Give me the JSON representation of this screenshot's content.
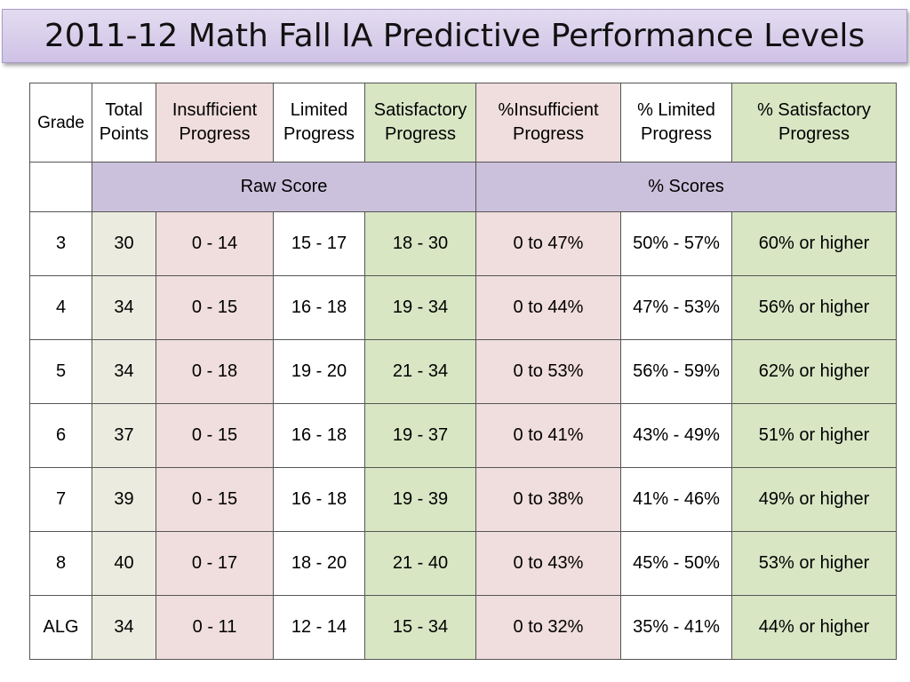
{
  "title": "2011-12 Math Fall IA Predictive Performance Levels",
  "headers": {
    "grade": "Grade",
    "total_points": [
      "Total",
      "Points"
    ],
    "insufficient": [
      "Insufficient",
      "Progress"
    ],
    "limited": [
      "Limited",
      "Progress"
    ],
    "satisfactory": [
      "Satisfactory",
      "Progress"
    ],
    "pct_insufficient": [
      "%Insufficient",
      "Progress"
    ],
    "pct_limited": [
      "% Limited",
      "Progress"
    ],
    "pct_satisfactory": [
      "% Satisfactory",
      "Progress"
    ]
  },
  "subheaders": {
    "raw_score": "Raw Score",
    "pct_scores": "% Scores"
  },
  "colors": {
    "title_bar": "#cfc2e6",
    "total_points_col": "#ecebdf",
    "insufficient_col": "#f0dddd",
    "satisfactory_col": "#d8e6c4",
    "subheader": "#ccc1dc"
  },
  "rows": [
    [
      "3",
      "30",
      "0 - 14",
      "15 - 17",
      "18 - 30",
      "0 to 47%",
      "50% - 57%",
      "60% or higher"
    ],
    [
      "4",
      "34",
      "0 - 15",
      "16 - 18",
      "19 - 34",
      "0 to 44%",
      "47% - 53%",
      "56% or higher"
    ],
    [
      "5",
      "34",
      "0 - 18",
      "19 - 20",
      "21 - 34",
      "0 to 53%",
      "56% - 59%",
      "62% or higher"
    ],
    [
      "6",
      "37",
      "0 - 15",
      "16 - 18",
      "19 - 37",
      "0 to 41%",
      "43% - 49%",
      "51% or higher"
    ],
    [
      "7",
      "39",
      "0 - 15",
      "16 - 18",
      "19 - 39",
      "0 to 38%",
      "41% - 46%",
      "49% or higher"
    ],
    [
      "8",
      "40",
      "0 - 17",
      "18 - 20",
      "21 - 40",
      "0 to 43%",
      "45% - 50%",
      "53% or higher"
    ],
    [
      "ALG",
      "34",
      "0 - 11",
      "12 - 14",
      "15 - 34",
      "0 to 32%",
      "35% - 41%",
      "44% or higher"
    ]
  ]
}
